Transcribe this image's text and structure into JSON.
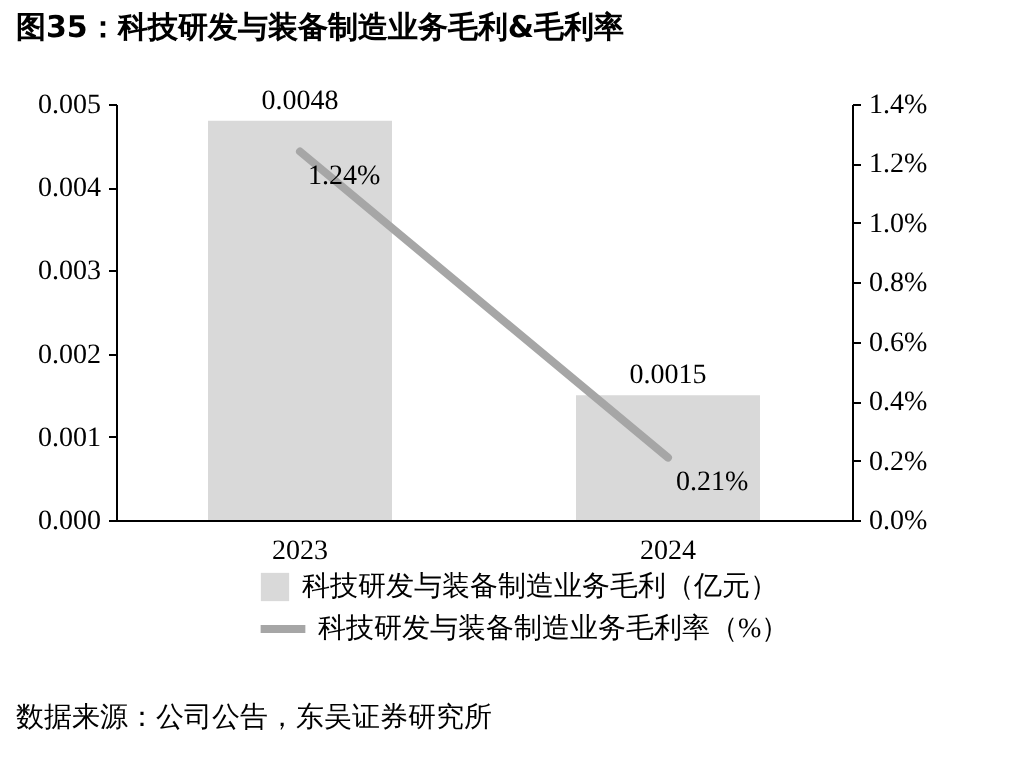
{
  "chart_data": {
    "type": "bar",
    "title": "图35：科技研发与装备制造业务毛利&毛利率",
    "categories": [
      "2023",
      "2024"
    ],
    "series": [
      {
        "name": "科技研发与装备制造业务毛利（亿元）",
        "color": "#d9d9d9",
        "values": [
          0.0048,
          0.0015
        ],
        "value_labels": [
          "0.0048",
          "0.0015"
        ]
      },
      {
        "name": "科技研发与装备制造业务毛利率（%）",
        "type": "line",
        "axis": "y2",
        "color": "#a6a6a6",
        "values": [
          1.24,
          0.21
        ],
        "value_labels": [
          "1.24%",
          "0.21%"
        ]
      }
    ],
    "ylim": [
      0,
      0.005
    ],
    "yticks": [
      {
        "value": 0,
        "label": "0.000"
      },
      {
        "value": 0.001,
        "label": "0.001"
      },
      {
        "value": 0.002,
        "label": "0.002"
      },
      {
        "value": 0.003,
        "label": "0.003"
      },
      {
        "value": 0.004,
        "label": "0.004"
      },
      {
        "value": 0.005,
        "label": "0.005"
      }
    ],
    "y2lim": [
      0,
      1.4
    ],
    "y2ticks": [
      {
        "value": 0,
        "label": "0.0%"
      },
      {
        "value": 0.2,
        "label": "0.2%"
      },
      {
        "value": 0.4,
        "label": "0.4%"
      },
      {
        "value": 0.6,
        "label": "0.6%"
      },
      {
        "value": 0.8,
        "label": "0.8%"
      },
      {
        "value": 1,
        "label": "1.0%"
      },
      {
        "value": 1.2,
        "label": "1.2%"
      },
      {
        "value": 1.4,
        "label": "1.4%"
      }
    ],
    "grid": false,
    "legend": "bottom",
    "marker": "none",
    "line_style": "solid",
    "annotations": [
      "数据来源：公司公告，东吴证券研究所"
    ]
  }
}
